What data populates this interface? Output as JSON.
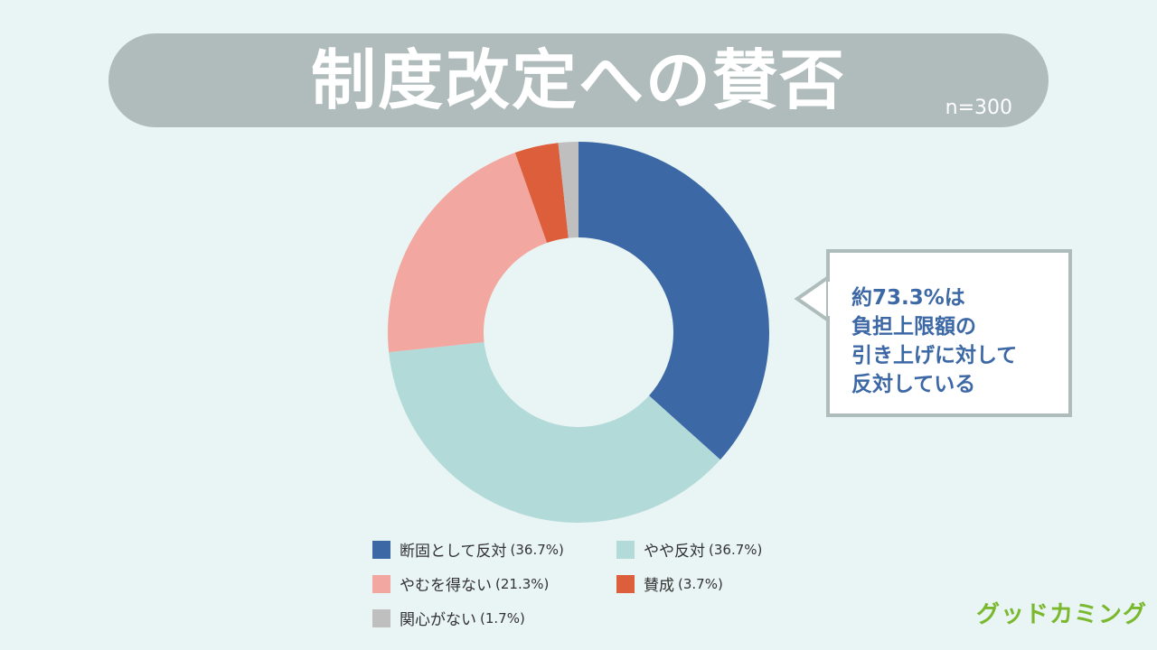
{
  "title": "制度改定への賛否",
  "sample_size": "n=300",
  "callout": {
    "text": "約73.3%は\n負担上限額の\n引き上げに対して\n反対している"
  },
  "logo": {
    "text": "グッドカミング"
  },
  "chart_data": {
    "type": "pie",
    "variant": "donut",
    "start_angle_deg": 0,
    "direction": "clockwise",
    "slices": [
      {
        "label": "断固として反対",
        "value": 36.7,
        "value_label": "(36.7%)",
        "color": "#3d68a6"
      },
      {
        "label": "やや反対",
        "value": 36.7,
        "value_label": "(36.7%)",
        "color": "#b1dad9"
      },
      {
        "label": "やむを得ない",
        "value": 21.3,
        "value_label": "(21.3%)",
        "color": "#f2a8a1"
      },
      {
        "label": "賛成",
        "value": 3.7,
        "value_label": "(3.7%)",
        "color": "#dd5e3a"
      },
      {
        "label": "関心がない",
        "value": 1.7,
        "value_label": "(1.7%)",
        "color": "#bfbfbf"
      }
    ]
  }
}
